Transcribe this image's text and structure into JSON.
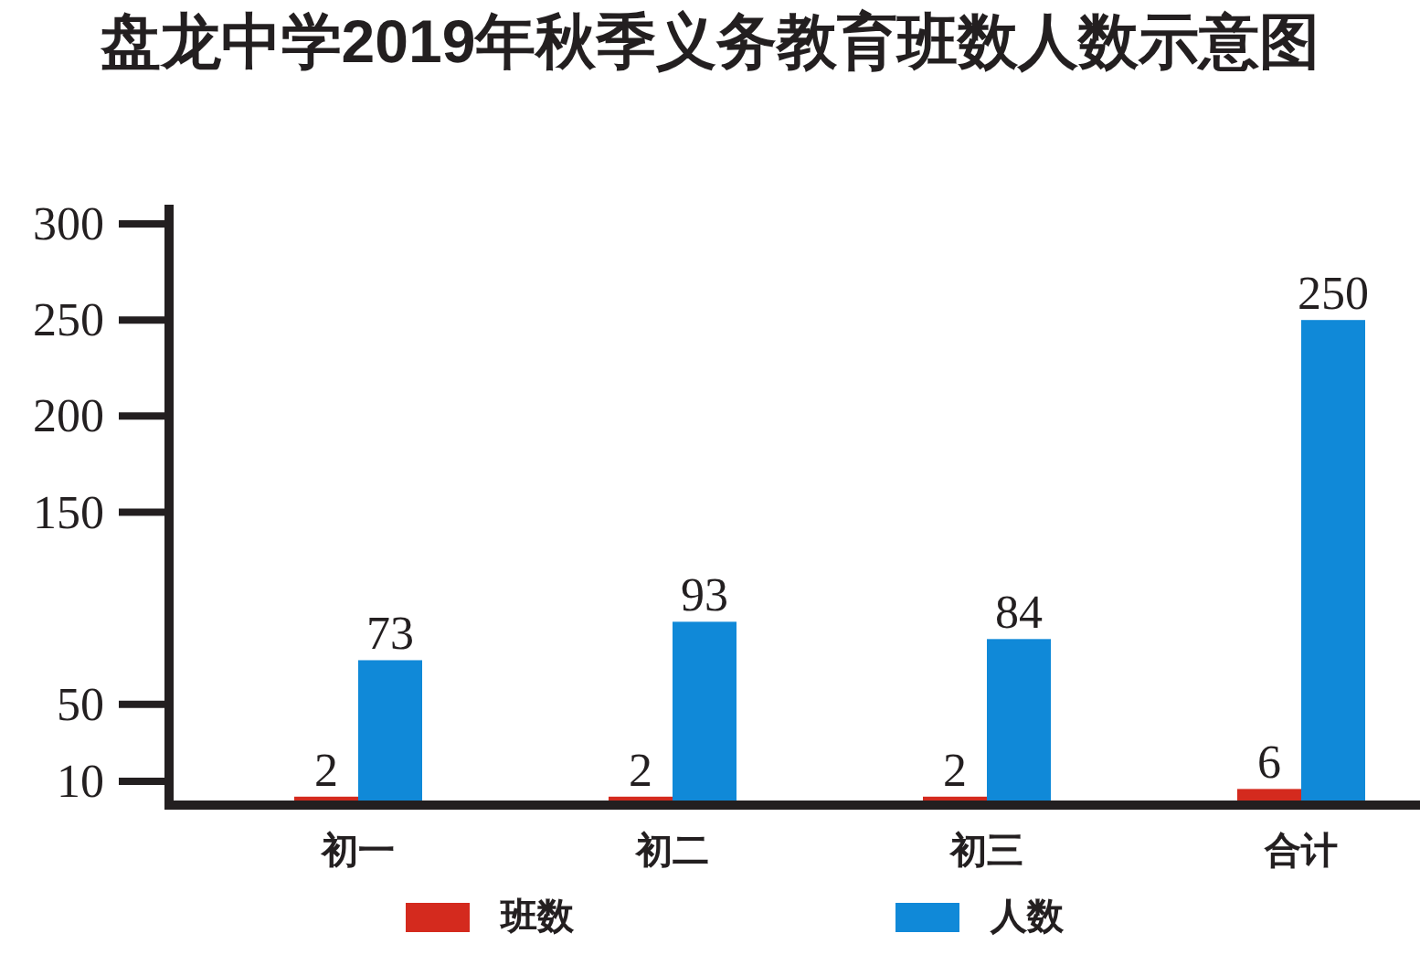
{
  "chart_data": {
    "type": "bar",
    "title": "盘龙中学2019年秋季义务教育班数人数示意图",
    "categories": [
      "初一",
      "初二",
      "初三",
      "合计"
    ],
    "series": [
      {
        "name": "班数",
        "color": "#d42a1e",
        "values": [
          2,
          2,
          2,
          6
        ]
      },
      {
        "name": "人数",
        "color": "#1089d8",
        "values": [
          73,
          93,
          84,
          250
        ]
      }
    ],
    "ylim": [
      0,
      310
    ],
    "yticks": [
      10,
      50,
      150,
      200,
      250,
      300
    ],
    "data_labels": true,
    "legend": "bottom"
  }
}
